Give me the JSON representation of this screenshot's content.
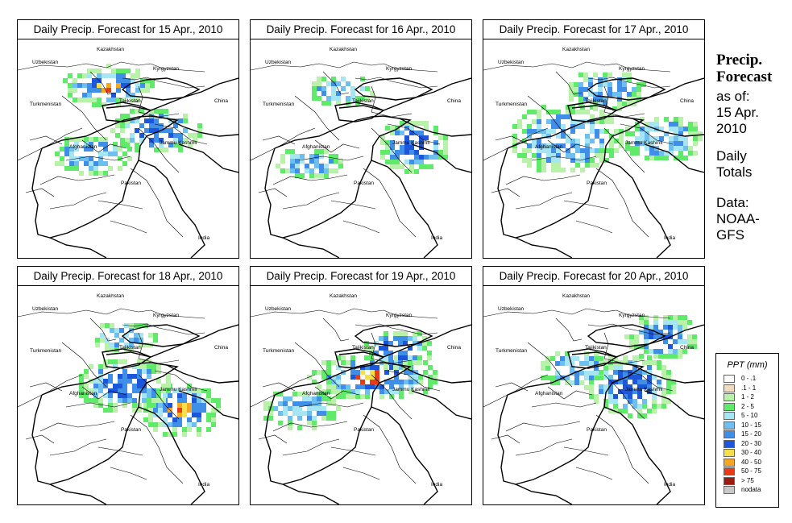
{
  "panels": [
    {
      "title": "Daily Precip. Forecast for  15 Apr., 2010"
    },
    {
      "title": "Daily Precip. Forecast for  16 Apr., 2010"
    },
    {
      "title": "Daily Precip. Forecast for  17 Apr., 2010"
    },
    {
      "title": "Daily Precip. Forecast for  18 Apr., 2010"
    },
    {
      "title": "Daily Precip. Forecast for  19 Apr., 2010"
    },
    {
      "title": "Daily Precip. Forecast for  20 Apr., 2010"
    }
  ],
  "map_labels": {
    "kazakhstan": "Kazakhstan",
    "uzbekistan": "Uzbekistan",
    "kyrgyzstan": "Kyrgyzstan",
    "tajikistan": "Tajikistan",
    "turkmenistan": "Turkmenistan",
    "china": "China",
    "afghanistan": "Afghanistan",
    "jammu_kashmir": "Jammu Kashmir",
    "pakistan": "Pakistan",
    "india": "India"
  },
  "sidebar": {
    "title_line1": "Precip.",
    "title_line2": "Forecast",
    "asof_1": "as of:",
    "asof_2": "15 Apr.",
    "asof_3": "2010",
    "daily_1": "Daily",
    "daily_2": "Totals",
    "data_1": "Data:",
    "data_2": "NOAA-",
    "data_3": "GFS"
  },
  "legend": {
    "title": "PPT (mm)",
    "items": [
      {
        "label": "0 - .1",
        "color": "#ffffff"
      },
      {
        "label": ".1 - 1",
        "color": "#f1dcc0"
      },
      {
        "label": "1 - 2",
        "color": "#b8f2a8"
      },
      {
        "label": "2 - 5",
        "color": "#5fea6a"
      },
      {
        "label": "5 - 10",
        "color": "#a6e6f2"
      },
      {
        "label": "10 - 15",
        "color": "#6cbfee"
      },
      {
        "label": "15 - 20",
        "color": "#3f8ee8"
      },
      {
        "label": "20 - 30",
        "color": "#1b56db"
      },
      {
        "label": "30 - 40",
        "color": "#f5e04a"
      },
      {
        "label": "40 - 50",
        "color": "#f5a623"
      },
      {
        "label": "50 - 75",
        "color": "#e83b17"
      },
      {
        "label": "> 75",
        "color": "#9e1b12"
      },
      {
        "label": "nodata",
        "color": "#c8c8c8"
      }
    ]
  }
}
